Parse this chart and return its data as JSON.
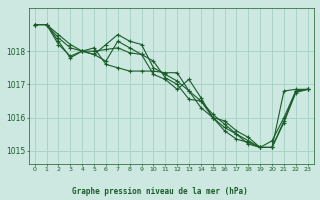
{
  "title": "Graphe pression niveau de la mer (hPa)",
  "background_color": "#cce8e0",
  "grid_color": "#aad4c8",
  "line_color": "#1a5c2a",
  "xlim": [
    -0.5,
    23.5
  ],
  "ylim": [
    1014.6,
    1019.3
  ],
  "yticks": [
    1015,
    1016,
    1017,
    1018
  ],
  "xticks": [
    0,
    1,
    2,
    3,
    4,
    5,
    6,
    7,
    8,
    9,
    10,
    11,
    12,
    13,
    14,
    15,
    16,
    17,
    18,
    19,
    20,
    21,
    22,
    23
  ],
  "curves": [
    [
      1018.8,
      1018.8,
      1018.4,
      1018.1,
      1018.0,
      1017.9,
      1018.2,
      1018.5,
      1018.3,
      1018.2,
      1017.5,
      1017.3,
      1017.1,
      1016.8,
      1016.3,
      1016.0,
      1015.7,
      1015.5,
      1015.2,
      1015.1,
      1015.1,
      1016.8,
      1016.85,
      1016.85
    ],
    [
      1018.8,
      1018.8,
      1018.3,
      1017.8,
      1018.0,
      1018.1,
      1017.6,
      1017.5,
      1017.4,
      1017.4,
      1017.4,
      1017.35,
      1017.35,
      1016.8,
      1016.5,
      1016.1,
      1015.8,
      1015.5,
      1015.3,
      1015.1,
      1015.3,
      1016.0,
      1016.8,
      1016.85
    ],
    [
      1018.8,
      1018.8,
      1018.5,
      1018.2,
      1018.0,
      1017.9,
      1017.7,
      1018.3,
      1018.1,
      1017.9,
      1017.3,
      1017.15,
      1016.85,
      1017.15,
      1016.6,
      1016.0,
      1015.9,
      1015.6,
      1015.4,
      1015.1,
      1015.1,
      1015.9,
      1016.8,
      1016.85
    ],
    [
      1018.8,
      1018.8,
      1018.2,
      1017.85,
      1018.0,
      1018.0,
      1018.05,
      1018.1,
      1017.95,
      1017.9,
      1017.7,
      1017.2,
      1017.0,
      1016.55,
      1016.5,
      1016.0,
      1015.6,
      1015.35,
      1015.25,
      1015.1,
      1015.1,
      1015.85,
      1016.75,
      1016.85
    ]
  ]
}
